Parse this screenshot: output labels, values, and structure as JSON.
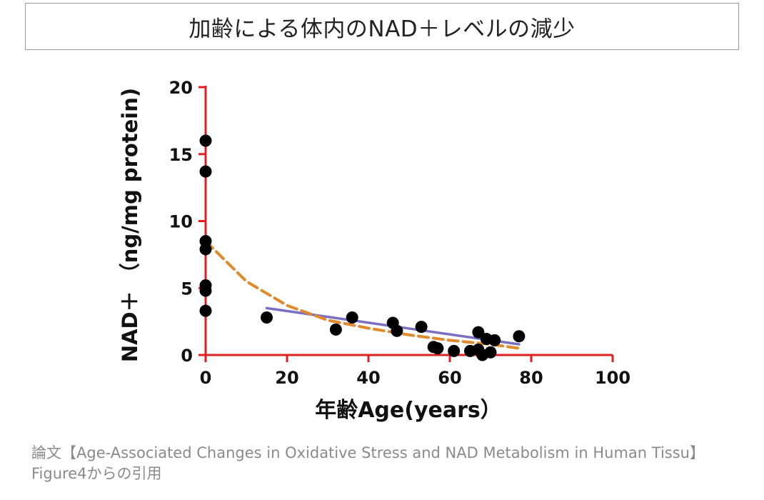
{
  "header": {
    "title": "加齢による体内のNAD＋レベルの減少"
  },
  "chart_data": {
    "type": "scatter",
    "xlabel": "年齢Age(years）",
    "ylabel": "NAD＋ （ng/mg protein)",
    "xlim": [
      0,
      100
    ],
    "ylim": [
      0,
      20
    ],
    "xticks": [
      0,
      20,
      40,
      60,
      80,
      100
    ],
    "yticks": [
      0,
      5,
      10,
      15,
      20
    ],
    "axis_color": "#e02020",
    "series": [
      {
        "kind": "points",
        "color": "#000000",
        "points": [
          [
            0,
            16.0
          ],
          [
            0,
            13.7
          ],
          [
            0,
            8.5
          ],
          [
            0,
            7.9
          ],
          [
            0,
            5.2
          ],
          [
            0,
            4.8
          ],
          [
            0,
            3.3
          ],
          [
            15,
            2.8
          ],
          [
            32,
            1.9
          ],
          [
            36,
            2.8
          ],
          [
            46,
            2.4
          ],
          [
            47,
            1.8
          ],
          [
            53,
            2.1
          ],
          [
            56,
            0.6
          ],
          [
            57,
            0.5
          ],
          [
            61,
            0.3
          ],
          [
            65,
            0.3
          ],
          [
            67,
            1.7
          ],
          [
            67,
            0.4
          ],
          [
            68,
            0.0
          ],
          [
            69,
            1.2
          ],
          [
            70,
            0.2
          ],
          [
            71,
            1.1
          ],
          [
            77,
            1.4
          ]
        ]
      },
      {
        "kind": "fit-line",
        "color": "#7b6fc4",
        "x": [
          15,
          77
        ],
        "y": [
          3.5,
          0.8
        ]
      },
      {
        "kind": "fit-curve-dashed",
        "color": "#e08a2c",
        "x": [
          0,
          10,
          20,
          30,
          40,
          50,
          60,
          70,
          77
        ],
        "y": [
          8.5,
          5.5,
          3.7,
          2.6,
          2.0,
          1.5,
          1.1,
          0.8,
          0.5
        ]
      }
    ]
  },
  "caption": {
    "line1": "論文【Age-Associated Changes in Oxidative Stress and NAD Metabolism in Human Tissu】",
    "line2": "Figure4からの引用"
  }
}
